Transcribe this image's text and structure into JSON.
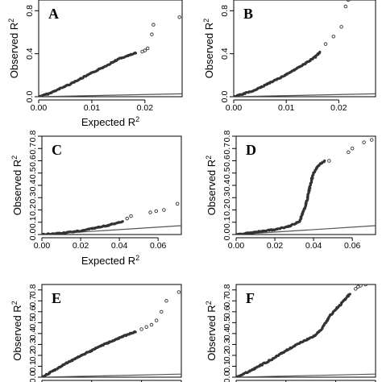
{
  "chart_data": [
    {
      "type": "scatter",
      "panel": "A",
      "xlabel_main": "Expected",
      "xlabel_sym": "R",
      "xlabel_sup": "2",
      "ylabel_main": "Observed",
      "ylabel_sym": "R",
      "ylabel_sup": "2",
      "xlim": [
        0,
        0.027
      ],
      "ylim": [
        0,
        0.9
      ],
      "xticks": [
        0.0,
        0.01,
        0.02
      ],
      "xtick_labels": [
        "0.00",
        "0.01",
        "0.02"
      ],
      "yticks": [
        0.0,
        0.4,
        0.8
      ],
      "ytick_labels": [
        "0.0",
        "0.4",
        "0.8"
      ],
      "show_x_ticks": true,
      "show_x_labels": true,
      "curve": [
        [
          0.0,
          0.0
        ],
        [
          0.002,
          0.03
        ],
        [
          0.006,
          0.12
        ],
        [
          0.012,
          0.27
        ],
        [
          0.015,
          0.35
        ],
        [
          0.0185,
          0.41
        ]
      ],
      "outliers": [
        [
          0.0195,
          0.42
        ],
        [
          0.02,
          0.43
        ],
        [
          0.0205,
          0.45
        ],
        [
          0.0213,
          0.58
        ],
        [
          0.0216,
          0.67
        ],
        [
          0.0265,
          0.74
        ]
      ],
      "reference_end": [
        0.027,
        0.027
      ]
    },
    {
      "type": "scatter",
      "panel": "B",
      "xlabel_main": "",
      "xlabel_sym": "",
      "xlabel_sup": "",
      "ylabel_main": "Observed",
      "ylabel_sym": "R",
      "ylabel_sup": "2",
      "xlim": [
        0,
        0.027
      ],
      "ylim": [
        0,
        0.9
      ],
      "xticks": [
        0.0,
        0.01,
        0.02
      ],
      "xtick_labels": [
        "0.00",
        "0.01",
        "0.02"
      ],
      "yticks": [
        0.0,
        0.4,
        0.8
      ],
      "ytick_labels": [
        "0.0",
        "0.4",
        "0.8"
      ],
      "show_x_ticks": true,
      "show_x_labels": true,
      "curve": [
        [
          0.0,
          0.0
        ],
        [
          0.004,
          0.06
        ],
        [
          0.009,
          0.18
        ],
        [
          0.013,
          0.29
        ],
        [
          0.0155,
          0.37
        ],
        [
          0.0165,
          0.42
        ]
      ],
      "outliers": [
        [
          0.0175,
          0.49
        ],
        [
          0.019,
          0.56
        ],
        [
          0.0205,
          0.65
        ],
        [
          0.0213,
          0.84
        ],
        [
          0.0218,
          0.9
        ]
      ],
      "reference_end": [
        0.027,
        0.027
      ]
    },
    {
      "type": "scatter",
      "panel": "C",
      "xlabel_main": "Expected",
      "xlabel_sym": "R",
      "xlabel_sup": "2",
      "ylabel_main": "Observed",
      "ylabel_sym": "R",
      "ylabel_sup": "2",
      "xlim": [
        0,
        0.072
      ],
      "ylim": [
        0,
        0.8
      ],
      "xticks": [
        0.0,
        0.02,
        0.04,
        0.06
      ],
      "xtick_labels": [
        "0.00",
        "0.02",
        "0.04",
        "0.06"
      ],
      "yticks": [
        0.0,
        0.1,
        0.2,
        0.3,
        0.4,
        0.5,
        0.6,
        0.7,
        0.8
      ],
      "ytick_labels": [
        "0.0",
        "0.1",
        "0.2",
        "0.3",
        "0.4",
        "0.5",
        "0.6",
        "0.7",
        "0.8"
      ],
      "show_x_ticks": true,
      "show_x_labels": true,
      "curve": [
        [
          0.0,
          0.0
        ],
        [
          0.01,
          0.01
        ],
        [
          0.02,
          0.03
        ],
        [
          0.03,
          0.06
        ],
        [
          0.038,
          0.09
        ],
        [
          0.042,
          0.11
        ]
      ],
      "outliers": [
        [
          0.044,
          0.13
        ],
        [
          0.046,
          0.15
        ],
        [
          0.056,
          0.18
        ],
        [
          0.059,
          0.19
        ],
        [
          0.063,
          0.2
        ],
        [
          0.07,
          0.25
        ]
      ],
      "reference_end": [
        0.072,
        0.072
      ]
    },
    {
      "type": "scatter",
      "panel": "D",
      "xlabel_main": "",
      "xlabel_sym": "",
      "xlabel_sup": "",
      "ylabel_main": "Observed",
      "ylabel_sym": "R",
      "ylabel_sup": "2",
      "xlim": [
        0,
        0.072
      ],
      "ylim": [
        0,
        0.8
      ],
      "xticks": [
        0.0,
        0.02,
        0.04,
        0.06
      ],
      "xtick_labels": [
        "0.00",
        "0.02",
        "0.04",
        "0.06"
      ],
      "yticks": [
        0.0,
        0.1,
        0.2,
        0.3,
        0.4,
        0.5,
        0.6,
        0.7,
        0.8
      ],
      "ytick_labels": [
        "0.0",
        "0.1",
        "0.2",
        "0.3",
        "0.4",
        "0.5",
        "0.6",
        "0.7",
        "0.8"
      ],
      "show_x_ticks": true,
      "show_x_labels": true,
      "curve": [
        [
          0.0,
          0.0
        ],
        [
          0.01,
          0.02
        ],
        [
          0.02,
          0.04
        ],
        [
          0.028,
          0.07
        ],
        [
          0.033,
          0.11
        ],
        [
          0.034,
          0.16
        ],
        [
          0.036,
          0.24
        ],
        [
          0.037,
          0.31
        ],
        [
          0.038,
          0.38
        ],
        [
          0.039,
          0.45
        ],
        [
          0.04,
          0.5
        ],
        [
          0.042,
          0.55
        ],
        [
          0.044,
          0.58
        ],
        [
          0.046,
          0.6
        ]
      ],
      "outliers": [
        [
          0.048,
          0.6
        ],
        [
          0.058,
          0.67
        ],
        [
          0.06,
          0.7
        ],
        [
          0.066,
          0.75
        ],
        [
          0.07,
          0.77
        ]
      ],
      "reference_end": [
        0.072,
        0.072
      ]
    },
    {
      "type": "scatter",
      "panel": "E",
      "xlabel_main": "",
      "xlabel_sym": "",
      "xlabel_sup": "",
      "ylabel_main": "Observed",
      "ylabel_sym": "R",
      "ylabel_sup": "2",
      "xlim": [
        0,
        0.028
      ],
      "ylim": [
        0,
        0.85
      ],
      "xticks": [
        0.0,
        0.01,
        0.02,
        0.028
      ],
      "xtick_labels": [
        "",
        "",
        "",
        ""
      ],
      "yticks": [
        0.0,
        0.1,
        0.2,
        0.3,
        0.4,
        0.5,
        0.6,
        0.7,
        0.8
      ],
      "ytick_labels": [
        "0.0",
        "0.1",
        "0.2",
        "0.3",
        "0.4",
        "0.5",
        "0.6",
        "0.7",
        "0.8"
      ],
      "show_x_ticks": true,
      "show_x_labels": false,
      "curve": [
        [
          0.0,
          0.0
        ],
        [
          0.002,
          0.05
        ],
        [
          0.005,
          0.13
        ],
        [
          0.008,
          0.2
        ],
        [
          0.012,
          0.29
        ],
        [
          0.016,
          0.37
        ],
        [
          0.019,
          0.42
        ]
      ],
      "outliers": [
        [
          0.02,
          0.44
        ],
        [
          0.021,
          0.46
        ],
        [
          0.022,
          0.48
        ],
        [
          0.023,
          0.52
        ],
        [
          0.024,
          0.6
        ],
        [
          0.025,
          0.7
        ],
        [
          0.0275,
          0.78
        ]
      ],
      "reference_end": [
        0.028,
        0.028
      ]
    },
    {
      "type": "scatter",
      "panel": "F",
      "xlabel_main": "",
      "xlabel_sym": "",
      "xlabel_sup": "",
      "ylabel_main": "Observed",
      "ylabel_sym": "R",
      "ylabel_sup": "2",
      "xlim": [
        0,
        0.028
      ],
      "ylim": [
        0,
        0.85
      ],
      "xticks": [
        0.0,
        0.01,
        0.02,
        0.028
      ],
      "xtick_labels": [
        "",
        "",
        "",
        ""
      ],
      "yticks": [
        0.0,
        0.1,
        0.2,
        0.3,
        0.4,
        0.5,
        0.6,
        0.7,
        0.8
      ],
      "ytick_labels": [
        "0.0",
        "0.1",
        "0.2",
        "0.3",
        "0.4",
        "0.5",
        "0.6",
        "0.7",
        "0.8"
      ],
      "show_x_ticks": true,
      "show_x_labels": false,
      "curve": [
        [
          0.0,
          0.0
        ],
        [
          0.003,
          0.06
        ],
        [
          0.007,
          0.16
        ],
        [
          0.011,
          0.27
        ],
        [
          0.014,
          0.34
        ],
        [
          0.0155,
          0.37
        ],
        [
          0.017,
          0.43
        ],
        [
          0.019,
          0.57
        ],
        [
          0.021,
          0.67
        ],
        [
          0.023,
          0.77
        ]
      ],
      "outliers": [
        [
          0.024,
          0.81
        ],
        [
          0.0245,
          0.83
        ],
        [
          0.025,
          0.84
        ],
        [
          0.026,
          0.85
        ],
        [
          0.0275,
          0.88
        ]
      ],
      "reference_end": [
        0.028,
        0.028
      ]
    }
  ]
}
